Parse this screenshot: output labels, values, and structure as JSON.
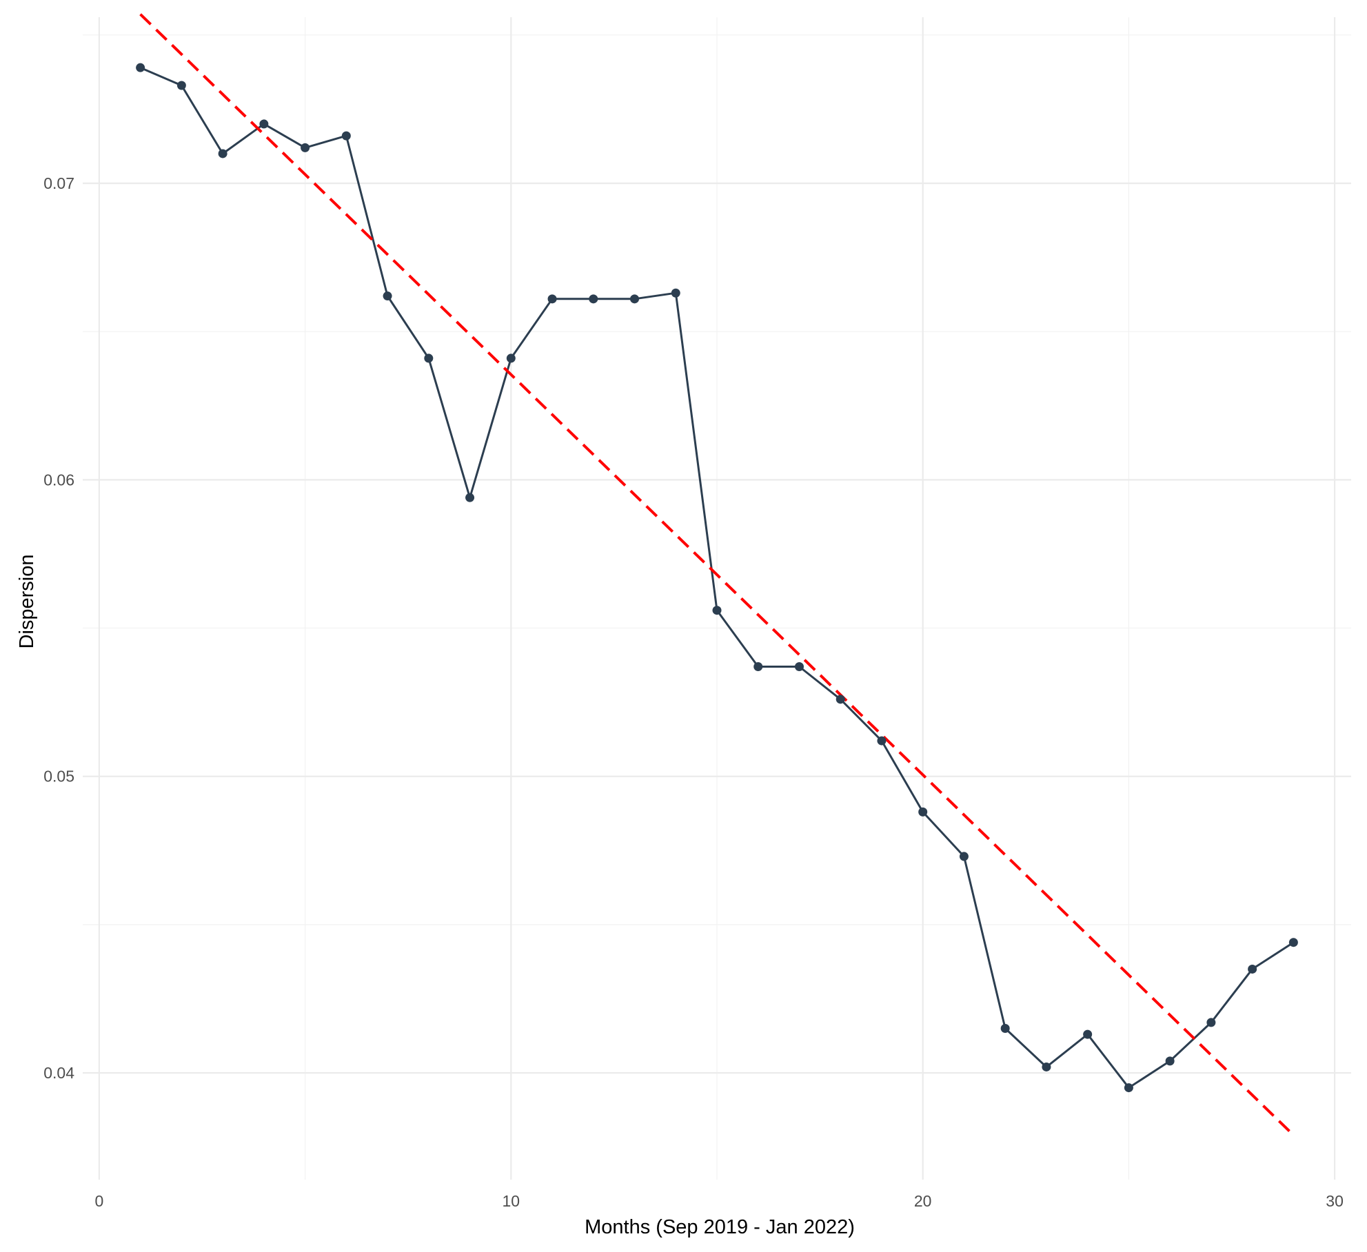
{
  "chart_data": {
    "type": "line",
    "title": "",
    "xlabel": "Months (Sep 2019 - Jan 2022)",
    "ylabel": "Dispersion",
    "xlim": [
      -0.4,
      30.4
    ],
    "ylim": [
      0.0364,
      0.0756
    ],
    "x_ticks": [
      0,
      10,
      20,
      30
    ],
    "x_tick_labels": [
      "0",
      "10",
      "20",
      "30"
    ],
    "y_ticks": [
      0.04,
      0.05,
      0.06,
      0.07
    ],
    "y_tick_labels": [
      "0.04",
      "0.05",
      "0.06",
      "0.07"
    ],
    "grid": true,
    "legend": "none",
    "series": [
      {
        "color": "#2c3e50",
        "style": "solid-with-points",
        "x": [
          1,
          2,
          3,
          4,
          5,
          6,
          7,
          8,
          9,
          10,
          11,
          12,
          13,
          14,
          15,
          16,
          17,
          18,
          19,
          20,
          21,
          22,
          23,
          24,
          25,
          26,
          27,
          28,
          29
        ],
        "y": [
          0.0739,
          0.0733,
          0.071,
          0.072,
          0.0712,
          0.0716,
          0.0662,
          0.0641,
          0.0594,
          0.0641,
          0.0661,
          0.0661,
          0.0661,
          0.0663,
          0.0556,
          0.0537,
          0.0537,
          0.0526,
          0.0512,
          0.0488,
          0.0473,
          0.0415,
          0.0402,
          0.0413,
          0.0395,
          0.0404,
          0.0417,
          0.0435,
          0.0444
        ]
      },
      {
        "color": "#ff0000",
        "style": "dashed",
        "x": [
          1,
          29
        ],
        "y": [
          0.0757,
          0.0379
        ]
      }
    ]
  }
}
